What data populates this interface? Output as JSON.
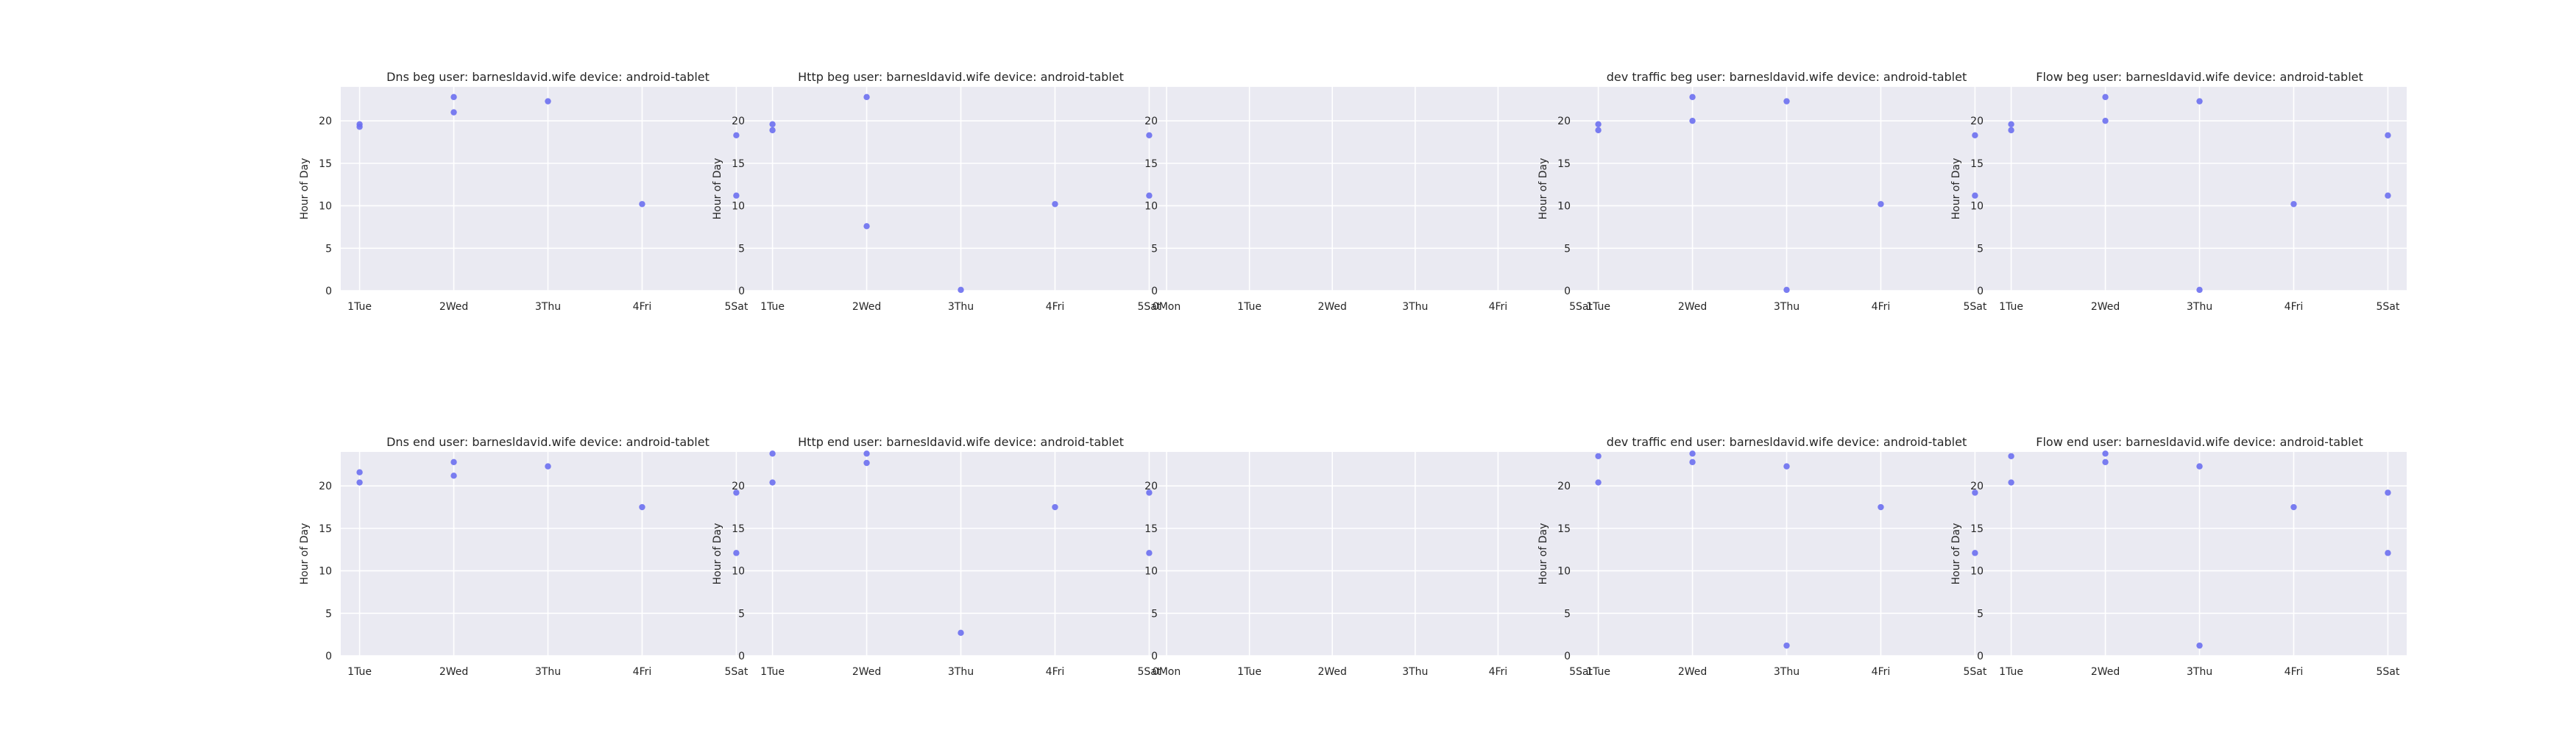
{
  "chart_data": [
    {
      "type": "scatter",
      "title": "Dns beg user: barnesldavid.wife device: android-tablet",
      "ylabel": "Hour of Day",
      "xticks": [
        {
          "v": 1,
          "label": "1Tue"
        },
        {
          "v": 2,
          "label": "2Wed"
        },
        {
          "v": 3,
          "label": "3Thu"
        },
        {
          "v": 4,
          "label": "4Fri"
        },
        {
          "v": 5,
          "label": "5Sat"
        }
      ],
      "xlim": [
        0.8,
        5.2
      ],
      "ylim": [
        0,
        24
      ],
      "yticks": [
        0,
        5,
        10,
        15,
        20
      ],
      "grid": true,
      "points": [
        {
          "x": 1,
          "y": 19.6
        },
        {
          "x": 1,
          "y": 19.3
        },
        {
          "x": 2,
          "y": 22.8
        },
        {
          "x": 2,
          "y": 21.0
        },
        {
          "x": 3,
          "y": 22.3
        },
        {
          "x": 4,
          "y": 10.2
        },
        {
          "x": 5,
          "y": 18.3
        },
        {
          "x": 5,
          "y": 11.2
        }
      ]
    },
    {
      "type": "scatter",
      "title": "Http beg user: barnesldavid.wife device: android-tablet",
      "ylabel": "Hour of Day",
      "xticks": [
        {
          "v": 1,
          "label": "1Tue"
        },
        {
          "v": 2,
          "label": "2Wed"
        },
        {
          "v": 3,
          "label": "3Thu"
        },
        {
          "v": 4,
          "label": "4Fri"
        },
        {
          "v": 5,
          "label": "5Sat"
        }
      ],
      "xlim": [
        0.8,
        5.2
      ],
      "ylim": [
        0,
        24
      ],
      "yticks": [
        0,
        5,
        10,
        15,
        20
      ],
      "grid": true,
      "points": [
        {
          "x": 1,
          "y": 19.6
        },
        {
          "x": 1,
          "y": 18.9
        },
        {
          "x": 2,
          "y": 22.8
        },
        {
          "x": 2,
          "y": 7.6
        },
        {
          "x": 3,
          "y": 0.1
        },
        {
          "x": 4,
          "y": 10.2
        },
        {
          "x": 5,
          "y": 18.3
        },
        {
          "x": 5,
          "y": 11.2
        }
      ]
    },
    {
      "type": "scatter",
      "title": "",
      "ylabel": "",
      "xticks": [
        {
          "v": 0,
          "label": "0Mon"
        },
        {
          "v": 1,
          "label": "1Tue"
        },
        {
          "v": 2,
          "label": "2Wed"
        },
        {
          "v": 3,
          "label": "3Thu"
        },
        {
          "v": 4,
          "label": "4Fri"
        },
        {
          "v": 5,
          "label": "5Sat"
        }
      ],
      "xlim": [
        0,
        5
      ],
      "ylim": [
        0,
        24
      ],
      "yticks": [
        0,
        5,
        10,
        15,
        20
      ],
      "grid": true,
      "points": []
    },
    {
      "type": "scatter",
      "title": "dev traffic beg user: barnesldavid.wife device: android-tablet",
      "ylabel": "Hour of Day",
      "xticks": [
        {
          "v": 1,
          "label": "1Tue"
        },
        {
          "v": 2,
          "label": "2Wed"
        },
        {
          "v": 3,
          "label": "3Thu"
        },
        {
          "v": 4,
          "label": "4Fri"
        },
        {
          "v": 5,
          "label": "5Sat"
        }
      ],
      "xlim": [
        0.8,
        5.2
      ],
      "ylim": [
        0,
        24
      ],
      "yticks": [
        0,
        5,
        10,
        15,
        20
      ],
      "grid": true,
      "points": [
        {
          "x": 1,
          "y": 19.6
        },
        {
          "x": 1,
          "y": 18.9
        },
        {
          "x": 2,
          "y": 22.8
        },
        {
          "x": 2,
          "y": 20.0
        },
        {
          "x": 3,
          "y": 22.3
        },
        {
          "x": 3,
          "y": 0.1
        },
        {
          "x": 4,
          "y": 10.2
        },
        {
          "x": 5,
          "y": 18.3
        },
        {
          "x": 5,
          "y": 11.2
        }
      ]
    },
    {
      "type": "scatter",
      "title": "Flow beg user: barnesldavid.wife device: android-tablet",
      "ylabel": "Hour of Day",
      "xticks": [
        {
          "v": 1,
          "label": "1Tue"
        },
        {
          "v": 2,
          "label": "2Wed"
        },
        {
          "v": 3,
          "label": "3Thu"
        },
        {
          "v": 4,
          "label": "4Fri"
        },
        {
          "v": 5,
          "label": "5Sat"
        }
      ],
      "xlim": [
        0.8,
        5.2
      ],
      "ylim": [
        0,
        24
      ],
      "yticks": [
        0,
        5,
        10,
        15,
        20
      ],
      "grid": true,
      "points": [
        {
          "x": 1,
          "y": 19.6
        },
        {
          "x": 1,
          "y": 18.9
        },
        {
          "x": 2,
          "y": 22.8
        },
        {
          "x": 2,
          "y": 20.0
        },
        {
          "x": 3,
          "y": 22.3
        },
        {
          "x": 3,
          "y": 0.1
        },
        {
          "x": 4,
          "y": 10.2
        },
        {
          "x": 5,
          "y": 18.3
        },
        {
          "x": 5,
          "y": 11.2
        }
      ]
    },
    {
      "type": "scatter",
      "title": "Dns end user: barnesldavid.wife device: android-tablet",
      "ylabel": "Hour of Day",
      "xticks": [
        {
          "v": 1,
          "label": "1Tue"
        },
        {
          "v": 2,
          "label": "2Wed"
        },
        {
          "v": 3,
          "label": "3Thu"
        },
        {
          "v": 4,
          "label": "4Fri"
        },
        {
          "v": 5,
          "label": "5Sat"
        }
      ],
      "xlim": [
        0.8,
        5.2
      ],
      "ylim": [
        0,
        24
      ],
      "yticks": [
        0,
        5,
        10,
        15,
        20
      ],
      "grid": true,
      "points": [
        {
          "x": 1,
          "y": 21.6
        },
        {
          "x": 1,
          "y": 20.4
        },
        {
          "x": 2,
          "y": 22.8
        },
        {
          "x": 2,
          "y": 21.2
        },
        {
          "x": 3,
          "y": 22.3
        },
        {
          "x": 4,
          "y": 17.5
        },
        {
          "x": 5,
          "y": 19.2
        },
        {
          "x": 5,
          "y": 12.1
        }
      ]
    },
    {
      "type": "scatter",
      "title": "Http end user: barnesldavid.wife device: android-tablet",
      "ylabel": "Hour of Day",
      "xticks": [
        {
          "v": 1,
          "label": "1Tue"
        },
        {
          "v": 2,
          "label": "2Wed"
        },
        {
          "v": 3,
          "label": "3Thu"
        },
        {
          "v": 4,
          "label": "4Fri"
        },
        {
          "v": 5,
          "label": "5Sat"
        }
      ],
      "xlim": [
        0.8,
        5.2
      ],
      "ylim": [
        0,
        24
      ],
      "yticks": [
        0,
        5,
        10,
        15,
        20
      ],
      "grid": true,
      "points": [
        {
          "x": 1,
          "y": 23.8
        },
        {
          "x": 1,
          "y": 20.4
        },
        {
          "x": 2,
          "y": 23.8
        },
        {
          "x": 2,
          "y": 22.7
        },
        {
          "x": 3,
          "y": 2.7
        },
        {
          "x": 4,
          "y": 17.5
        },
        {
          "x": 5,
          "y": 19.2
        },
        {
          "x": 5,
          "y": 12.1
        }
      ]
    },
    {
      "type": "scatter",
      "title": "",
      "ylabel": "",
      "xticks": [
        {
          "v": 0,
          "label": "0Mon"
        },
        {
          "v": 1,
          "label": "1Tue"
        },
        {
          "v": 2,
          "label": "2Wed"
        },
        {
          "v": 3,
          "label": "3Thu"
        },
        {
          "v": 4,
          "label": "4Fri"
        },
        {
          "v": 5,
          "label": "5Sat"
        }
      ],
      "xlim": [
        0,
        5
      ],
      "ylim": [
        0,
        24
      ],
      "yticks": [
        0,
        5,
        10,
        15,
        20
      ],
      "grid": true,
      "points": []
    },
    {
      "type": "scatter",
      "title": "dev traffic end user: barnesldavid.wife device: android-tablet",
      "ylabel": "Hour of Day",
      "xticks": [
        {
          "v": 1,
          "label": "1Tue"
        },
        {
          "v": 2,
          "label": "2Wed"
        },
        {
          "v": 3,
          "label": "3Thu"
        },
        {
          "v": 4,
          "label": "4Fri"
        },
        {
          "v": 5,
          "label": "5Sat"
        }
      ],
      "xlim": [
        0.8,
        5.2
      ],
      "ylim": [
        0,
        24
      ],
      "yticks": [
        0,
        5,
        10,
        15,
        20
      ],
      "grid": true,
      "points": [
        {
          "x": 1,
          "y": 23.5
        },
        {
          "x": 1,
          "y": 20.4
        },
        {
          "x": 2,
          "y": 23.8
        },
        {
          "x": 2,
          "y": 22.8
        },
        {
          "x": 3,
          "y": 22.3
        },
        {
          "x": 3,
          "y": 1.2
        },
        {
          "x": 4,
          "y": 17.5
        },
        {
          "x": 5,
          "y": 19.2
        },
        {
          "x": 5,
          "y": 12.1
        }
      ]
    },
    {
      "type": "scatter",
      "title": "Flow end user: barnesldavid.wife device: android-tablet",
      "ylabel": "Hour of Day",
      "xticks": [
        {
          "v": 1,
          "label": "1Tue"
        },
        {
          "v": 2,
          "label": "2Wed"
        },
        {
          "v": 3,
          "label": "3Thu"
        },
        {
          "v": 4,
          "label": "4Fri"
        },
        {
          "v": 5,
          "label": "5Sat"
        }
      ],
      "xlim": [
        0.8,
        5.2
      ],
      "ylim": [
        0,
        24
      ],
      "yticks": [
        0,
        5,
        10,
        15,
        20
      ],
      "grid": true,
      "points": [
        {
          "x": 1,
          "y": 23.5
        },
        {
          "x": 1,
          "y": 20.4
        },
        {
          "x": 2,
          "y": 23.8
        },
        {
          "x": 2,
          "y": 22.8
        },
        {
          "x": 3,
          "y": 22.3
        },
        {
          "x": 3,
          "y": 1.2
        },
        {
          "x": 4,
          "y": 17.5
        },
        {
          "x": 5,
          "y": 19.2
        },
        {
          "x": 5,
          "y": 12.1
        }
      ]
    }
  ],
  "colors": {
    "point": "#6b6ff0",
    "plot_bg": "#eaeaf2",
    "grid": "#ffffff",
    "text": "#262626"
  }
}
